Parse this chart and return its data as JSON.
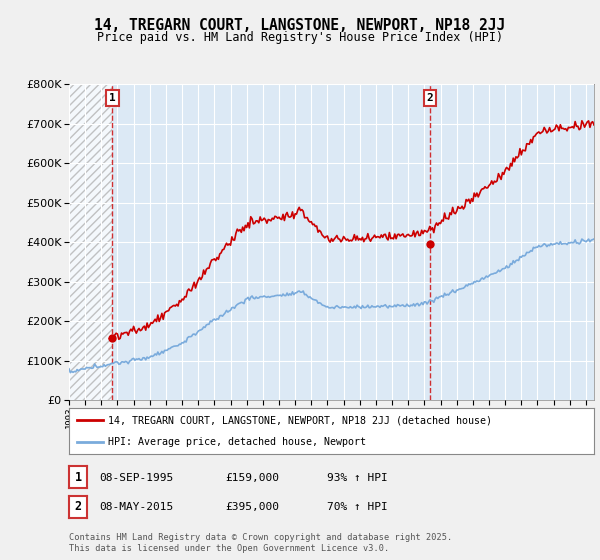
{
  "title": "14, TREGARN COURT, LANGSTONE, NEWPORT, NP18 2JJ",
  "subtitle": "Price paid vs. HM Land Registry's House Price Index (HPI)",
  "background_color": "#f0f0f0",
  "plot_bg_color": "#dce9f5",
  "hatch_region_end": 1995.69,
  "sale1": {
    "date": "1995-09-08",
    "price": 159000,
    "label": "1",
    "x": 1995.69
  },
  "sale2": {
    "date": "2015-05-08",
    "price": 395000,
    "label": "2",
    "x": 2015.36
  },
  "annotation1": {
    "text": "08-SEP-1995",
    "price_str": "£159,000",
    "pct": "93% ↑ HPI"
  },
  "annotation2": {
    "text": "08-MAY-2015",
    "price_str": "£395,000",
    "pct": "70% ↑ HPI"
  },
  "legend_line1": "14, TREGARN COURT, LANGSTONE, NEWPORT, NP18 2JJ (detached house)",
  "legend_line2": "HPI: Average price, detached house, Newport",
  "footer": "Contains HM Land Registry data © Crown copyright and database right 2025.\nThis data is licensed under the Open Government Licence v3.0.",
  "red_color": "#cc0000",
  "blue_color": "#7aabdc",
  "ylim": [
    0,
    800000
  ],
  "xlim_start": 1993.0,
  "xlim_end": 2025.5
}
